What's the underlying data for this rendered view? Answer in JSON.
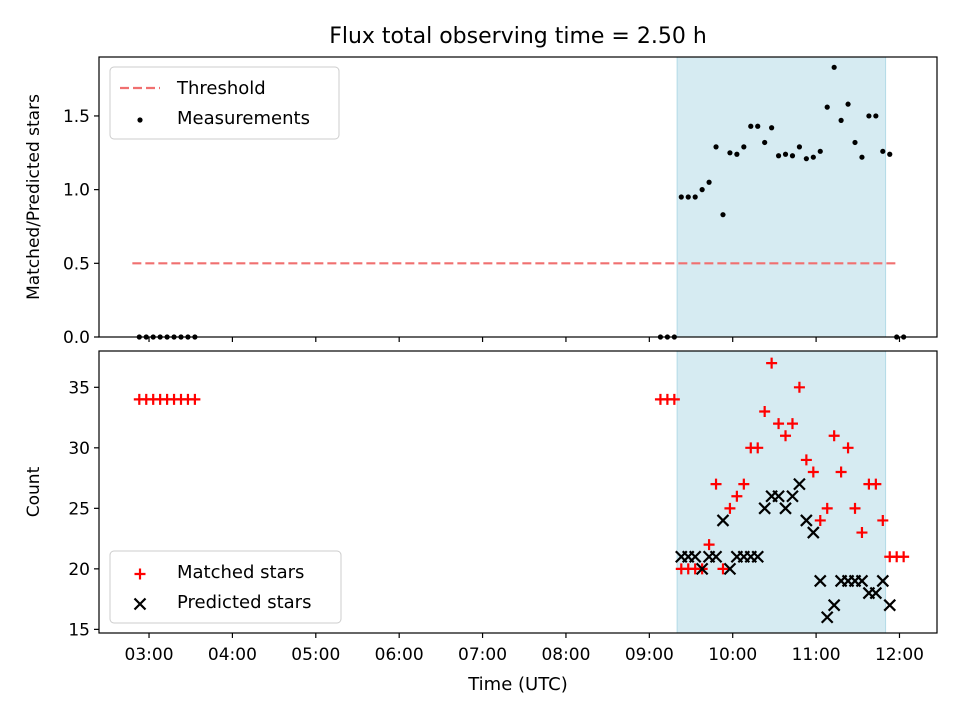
{
  "chart_data": {
    "title": "Flux total observing time = 2.50 h",
    "xlabel": "Time (UTC)",
    "x_ticks": [
      "03:00",
      "04:00",
      "05:00",
      "06:00",
      "07:00",
      "08:00",
      "09:00",
      "10:00",
      "11:00",
      "12:00"
    ],
    "xlim": [
      "02:24",
      "12:27"
    ],
    "shaded_interval": {
      "start": "09:20",
      "end": "11:50",
      "color": "#add8e6"
    },
    "panels": [
      {
        "type": "scatter",
        "ylabel": "Matched/Predicted stars",
        "ylim": [
          0,
          1.9
        ],
        "y_ticks": [
          "0.0",
          "0.5",
          "1.0",
          "1.5"
        ],
        "legend_position": "top-left",
        "threshold": {
          "name": "Threshold",
          "value": 0.5,
          "x_start": "02:48",
          "x_end": "11:58",
          "color": "#f07070",
          "style": "dashed"
        },
        "series": [
          {
            "name": "Measurements",
            "color": "#000000",
            "marker": "dot",
            "points": [
              [
                "02:53",
                0
              ],
              [
                "02:58",
                0
              ],
              [
                "03:03",
                0
              ],
              [
                "03:08",
                0
              ],
              [
                "03:13",
                0
              ],
              [
                "03:18",
                0
              ],
              [
                "03:23",
                0
              ],
              [
                "03:28",
                0
              ],
              [
                "03:33",
                0
              ],
              [
                "09:08",
                0
              ],
              [
                "09:13",
                0
              ],
              [
                "09:18",
                0
              ],
              [
                "09:23",
                0.95
              ],
              [
                "09:28",
                0.95
              ],
              [
                "09:33",
                0.95
              ],
              [
                "09:38",
                1.0
              ],
              [
                "09:43",
                1.05
              ],
              [
                "09:48",
                1.29
              ],
              [
                "09:53",
                0.83
              ],
              [
                "09:58",
                1.25
              ],
              [
                "10:03",
                1.24
              ],
              [
                "10:08",
                1.29
              ],
              [
                "10:13",
                1.43
              ],
              [
                "10:18",
                1.43
              ],
              [
                "10:23",
                1.32
              ],
              [
                "10:28",
                1.42
              ],
              [
                "10:33",
                1.23
              ],
              [
                "10:38",
                1.24
              ],
              [
                "10:43",
                1.23
              ],
              [
                "10:48",
                1.29
              ],
              [
                "10:53",
                1.21
              ],
              [
                "10:58",
                1.22
              ],
              [
                "11:03",
                1.26
              ],
              [
                "11:08",
                1.56
              ],
              [
                "11:13",
                1.83
              ],
              [
                "11:18",
                1.47
              ],
              [
                "11:23",
                1.58
              ],
              [
                "11:28",
                1.32
              ],
              [
                "11:33",
                1.22
              ],
              [
                "11:38",
                1.5
              ],
              [
                "11:43",
                1.5
              ],
              [
                "11:48",
                1.26
              ],
              [
                "11:53",
                1.24
              ],
              [
                "11:58",
                0
              ],
              [
                "12:03",
                0
              ]
            ]
          }
        ]
      },
      {
        "type": "scatter",
        "ylabel": "Count",
        "ylim": [
          14.7,
          38.0
        ],
        "y_ticks": [
          "15",
          "20",
          "25",
          "30",
          "35"
        ],
        "legend_position": "bottom-left",
        "series": [
          {
            "name": "Matched stars",
            "color": "#ff0000",
            "marker": "plus",
            "points": [
              [
                "02:53",
                34
              ],
              [
                "02:58",
                34
              ],
              [
                "03:03",
                34
              ],
              [
                "03:08",
                34
              ],
              [
                "03:13",
                34
              ],
              [
                "03:18",
                34
              ],
              [
                "03:23",
                34
              ],
              [
                "03:28",
                34
              ],
              [
                "03:33",
                34
              ],
              [
                "09:08",
                34
              ],
              [
                "09:13",
                34
              ],
              [
                "09:18",
                34
              ],
              [
                "09:23",
                20
              ],
              [
                "09:28",
                20
              ],
              [
                "09:33",
                20
              ],
              [
                "09:38",
                20
              ],
              [
                "09:43",
                22
              ],
              [
                "09:48",
                27
              ],
              [
                "09:53",
                20
              ],
              [
                "09:58",
                25
              ],
              [
                "10:03",
                26
              ],
              [
                "10:08",
                27
              ],
              [
                "10:13",
                30
              ],
              [
                "10:18",
                30
              ],
              [
                "10:23",
                33
              ],
              [
                "10:28",
                37
              ],
              [
                "10:33",
                32
              ],
              [
                "10:38",
                31
              ],
              [
                "10:43",
                32
              ],
              [
                "10:48",
                35
              ],
              [
                "10:53",
                29
              ],
              [
                "10:58",
                28
              ],
              [
                "11:03",
                24
              ],
              [
                "11:08",
                25
              ],
              [
                "11:13",
                31
              ],
              [
                "11:18",
                28
              ],
              [
                "11:23",
                30
              ],
              [
                "11:28",
                25
              ],
              [
                "11:33",
                23
              ],
              [
                "11:38",
                27
              ],
              [
                "11:43",
                27
              ],
              [
                "11:48",
                24
              ],
              [
                "11:53",
                21
              ],
              [
                "11:58",
                21
              ],
              [
                "12:03",
                21
              ]
            ]
          },
          {
            "name": "Predicted stars",
            "color": "#000000",
            "marker": "cross",
            "points": [
              [
                "09:23",
                21
              ],
              [
                "09:28",
                21
              ],
              [
                "09:33",
                21
              ],
              [
                "09:38",
                20
              ],
              [
                "09:43",
                21
              ],
              [
                "09:48",
                21
              ],
              [
                "09:53",
                24
              ],
              [
                "09:58",
                20
              ],
              [
                "10:03",
                21
              ],
              [
                "10:08",
                21
              ],
              [
                "10:13",
                21
              ],
              [
                "10:18",
                21
              ],
              [
                "10:23",
                25
              ],
              [
                "10:28",
                26
              ],
              [
                "10:33",
                26
              ],
              [
                "10:38",
                25
              ],
              [
                "10:43",
                26
              ],
              [
                "10:48",
                27
              ],
              [
                "10:53",
                24
              ],
              [
                "10:58",
                23
              ],
              [
                "11:03",
                19
              ],
              [
                "11:08",
                16
              ],
              [
                "11:13",
                17
              ],
              [
                "11:18",
                19
              ],
              [
                "11:23",
                19
              ],
              [
                "11:28",
                19
              ],
              [
                "11:33",
                19
              ],
              [
                "11:38",
                18
              ],
              [
                "11:43",
                18
              ],
              [
                "11:48",
                19
              ],
              [
                "11:53",
                17
              ]
            ]
          }
        ]
      }
    ]
  }
}
